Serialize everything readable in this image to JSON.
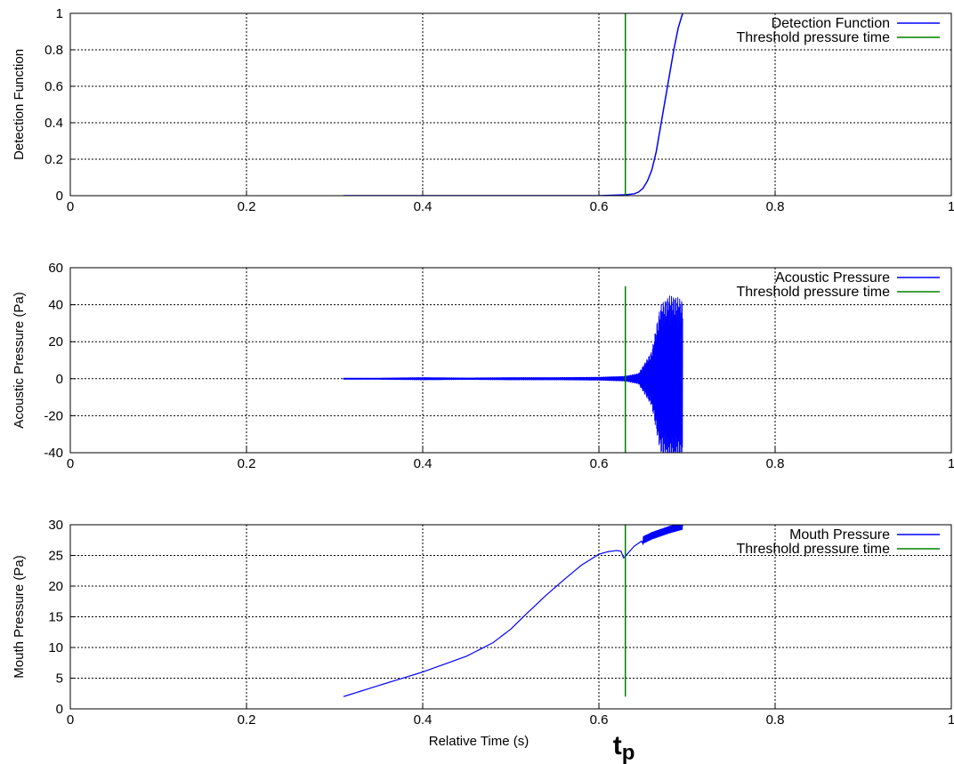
{
  "chart_data": [
    {
      "type": "line",
      "ylabel": "Detection Function",
      "xlim": [
        0,
        1
      ],
      "ylim": [
        0,
        1
      ],
      "xticks": [
        "0",
        "0.2",
        "0.4",
        "0.6",
        "0.8",
        "1"
      ],
      "yticks": [
        "0",
        "0.2",
        "0.4",
        "0.6",
        "0.8",
        "1"
      ],
      "grid": true,
      "legend_position": "top-right",
      "threshold_x": 0.63,
      "threshold_ymin": 0,
      "threshold_ymax": 1,
      "series": [
        {
          "name": "Detection Function",
          "color": "#0000ff",
          "x": [
            0.31,
            0.4,
            0.5,
            0.55,
            0.6,
            0.62,
            0.63,
            0.64,
            0.645,
            0.65,
            0.655,
            0.66,
            0.665,
            0.67,
            0.675,
            0.68,
            0.685,
            0.69,
            0.695
          ],
          "y": [
            0,
            0,
            0,
            0,
            0,
            0.003,
            0.005,
            0.01,
            0.02,
            0.04,
            0.08,
            0.14,
            0.24,
            0.38,
            0.52,
            0.66,
            0.8,
            0.92,
            1.0
          ]
        },
        {
          "name": "Threshold pressure time",
          "color": "#008000"
        }
      ]
    },
    {
      "type": "line",
      "ylabel": "Acoustic Pressure (Pa)",
      "xlim": [
        0,
        1
      ],
      "ylim": [
        -40,
        60
      ],
      "xticks": [
        "0",
        "0.2",
        "0.4",
        "0.6",
        "0.8",
        "1"
      ],
      "yticks": [
        "-40",
        "-20",
        "0",
        "20",
        "40",
        "60"
      ],
      "grid": true,
      "legend_position": "top-right",
      "threshold_x": 0.63,
      "threshold_ymin": -40,
      "threshold_ymax": 50,
      "series": [
        {
          "name": "Acoustic Pressure",
          "color": "#0000ff",
          "x": [
            0.31,
            0.35,
            0.4,
            0.45,
            0.5,
            0.55,
            0.6,
            0.63,
            0.645,
            0.66,
            0.665,
            0.67,
            0.68,
            0.69,
            0.695
          ],
          "envelope": [
            0.5,
            0.5,
            0.8,
            0.6,
            0.8,
            0.8,
            1.0,
            1.5,
            3,
            15,
            28,
            40,
            45,
            44,
            42
          ]
        },
        {
          "name": "Threshold pressure time",
          "color": "#008000"
        }
      ]
    },
    {
      "type": "line",
      "ylabel": "Mouth Pressure (Pa)",
      "xlabel": "Relative Time (s)",
      "xlim": [
        0,
        1
      ],
      "ylim": [
        0,
        30
      ],
      "xticks": [
        "0",
        "0.2",
        "0.4",
        "0.6",
        "0.8",
        "1"
      ],
      "yticks": [
        "0",
        "5",
        "10",
        "15",
        "20",
        "25",
        "30"
      ],
      "grid": true,
      "legend_position": "top-right",
      "threshold_x": 0.63,
      "threshold_ymin": 2,
      "threshold_ymax": 30,
      "annotation": "t",
      "annotation_subscript": "p",
      "series": [
        {
          "name": "Mouth Pressure",
          "color": "#0000ff",
          "x": [
            0.31,
            0.35,
            0.4,
            0.45,
            0.48,
            0.5,
            0.52,
            0.54,
            0.56,
            0.58,
            0.6,
            0.61,
            0.62,
            0.625,
            0.628,
            0.632,
            0.64,
            0.65,
            0.66,
            0.67,
            0.68,
            0.69,
            0.695
          ],
          "y": [
            2,
            3.8,
            6,
            8.6,
            10.8,
            13,
            15.8,
            18.5,
            21,
            23.4,
            25.2,
            25.6,
            25.8,
            25.7,
            24.6,
            25.2,
            26.5,
            27.5,
            28.2,
            28.7,
            29.2,
            29.6,
            29.8
          ],
          "oscillation_from_x": 0.65,
          "oscillation_amplitude": 0.6
        },
        {
          "name": "Threshold pressure time",
          "color": "#008000"
        }
      ]
    }
  ]
}
